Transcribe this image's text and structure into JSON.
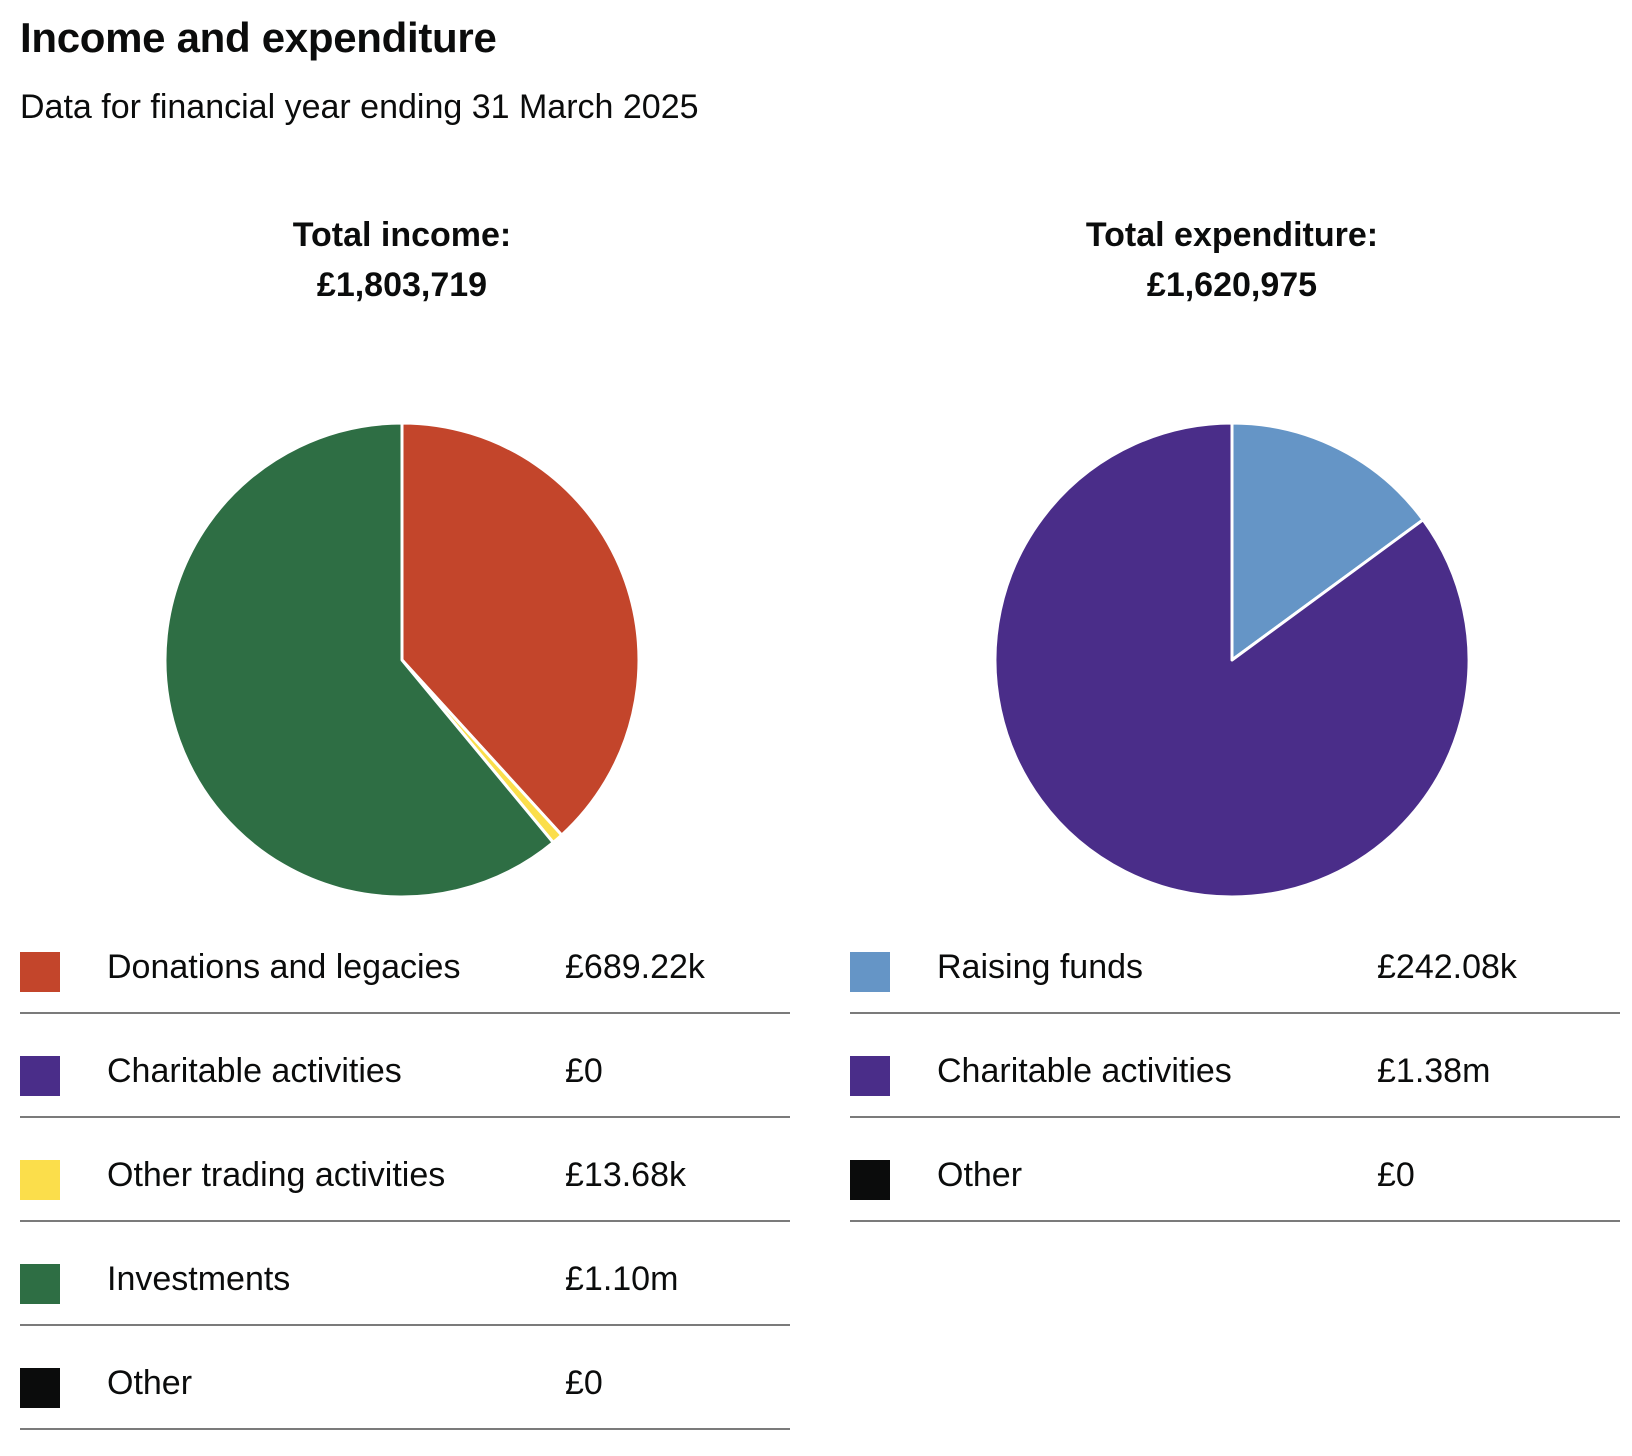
{
  "title": "Income and expenditure",
  "subtitle": "Data for financial year ending 31 March 2025",
  "chart_data": [
    {
      "type": "pie",
      "title": "Total income:",
      "total": "£1,803,719",
      "categories": [
        "Donations and legacies",
        "Charitable activities",
        "Other trading activities",
        "Investments",
        "Other"
      ],
      "values": [
        689220,
        0,
        13680,
        1100000,
        0
      ],
      "value_labels": [
        "£689.22k",
        "£0",
        "£13.68k",
        "£1.10m",
        "£0"
      ],
      "colors": [
        "#c3452b",
        "#4a2d89",
        "#fbde4b",
        "#2e6e44",
        "#0b0c0c"
      ],
      "legend_placement": "bottom"
    },
    {
      "type": "pie",
      "title": "Total expenditure:",
      "total": "£1,620,975",
      "categories": [
        "Raising funds",
        "Charitable activities",
        "Other"
      ],
      "values": [
        242080,
        1380000,
        0
      ],
      "value_labels": [
        "£242.08k",
        "£1.38m",
        "£0"
      ],
      "colors": [
        "#6595c6",
        "#4a2d89",
        "#0b0c0c"
      ],
      "legend_placement": "bottom"
    }
  ]
}
